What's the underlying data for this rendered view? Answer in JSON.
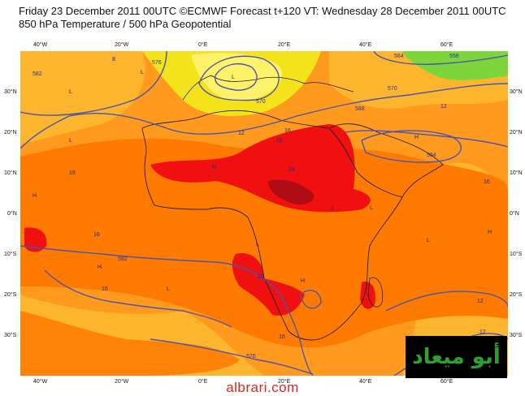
{
  "header": {
    "line1": "Friday 23 December 2011 00UTC ©ECMWF Forecast t+120 VT: Wednesday 28 December 2011 00UTC",
    "line2": "850 hPa Temperature / 500 hPa Geopotential"
  },
  "axes": {
    "top_lon": [
      "40°W",
      "20°W",
      "0°E",
      "20°E",
      "40°E",
      "60°E"
    ],
    "bottom_lon": [
      "40°W",
      "20°W",
      "0°E",
      "20°E",
      "40°E",
      "60°E"
    ],
    "left_lat": [
      "30°N",
      "20°N",
      "10°N",
      "0°N",
      "10°S",
      "20°S",
      "30°S"
    ],
    "right_lat": [
      "30°N",
      "20°N",
      "10°N",
      "0°N",
      "10°S",
      "20°S",
      "30°S"
    ]
  },
  "contour_labels": [
    "582",
    "576",
    "570",
    "564",
    "558",
    "588",
    "582",
    "576",
    "570",
    "564"
  ],
  "temperature_labels": [
    "8",
    "12",
    "16",
    "20",
    "24",
    "16",
    "12",
    "16",
    "16",
    "20",
    "16",
    "12",
    "16",
    "12"
  ],
  "pressure_marks": [
    "L",
    "H"
  ],
  "watermark": {
    "text": "أبو ميعاد"
  },
  "site": {
    "text": "albrari.com"
  },
  "colors": {
    "very_hot": "#b00c16",
    "hot": "#f01010",
    "warm": "#ff7a00",
    "mild": "#ff9a1e",
    "cool": "#fdb52d",
    "cold": "#f4e21a",
    "green": "#7cd53b",
    "contour": "#4a56ad",
    "coast": "#222222"
  }
}
